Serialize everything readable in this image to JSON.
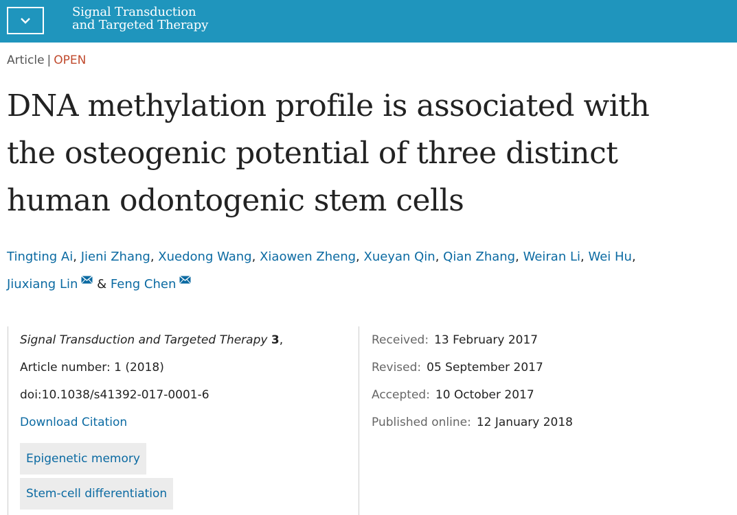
{
  "header": {
    "menu_icon": "chevron-down-icon",
    "journal_line1": "Signal Transduction",
    "journal_line2": "and Targeted Therapy",
    "bar_color": "#1f95bd"
  },
  "article": {
    "type": "Article",
    "separator": "|",
    "access": "OPEN",
    "title_lines": [
      "DNA methylation profile is associated with",
      "the osteogenic potential of three distinct",
      "human odontogenic stem cells"
    ]
  },
  "authors": [
    {
      "name": "Tingting Ai",
      "suffix": ","
    },
    {
      "name": "Jieni Zhang",
      "suffix": ","
    },
    {
      "name": "Xuedong Wang",
      "suffix": ","
    },
    {
      "name": "Xiaowen Zheng",
      "suffix": ","
    },
    {
      "name": "Xueyan Qin",
      "suffix": ","
    },
    {
      "name": "Qian Zhang",
      "suffix": ","
    },
    {
      "name": "Weiran Li",
      "suffix": ","
    },
    {
      "name": "Wei Hu",
      "suffix": ","
    },
    {
      "name": "Jiuxiang Lin",
      "suffix": ""
    },
    {
      "name": "Feng Chen",
      "suffix": ""
    }
  ],
  "authors_joiner": "&",
  "citation": {
    "journal": "Signal Transduction and Targeted Therapy",
    "volume": "3",
    "volume_suffix": ",",
    "article_number": "Article number: 1 (2018)",
    "doi": "doi:10.1038/s41392-017-0001-6",
    "download_label": "Download Citation"
  },
  "subjects": [
    "Epigenetic memory",
    "Stem-cell differentiation"
  ],
  "dates": [
    {
      "label": "Received:",
      "value": "13 February 2017"
    },
    {
      "label": "Revised:",
      "value": "05 September 2017"
    },
    {
      "label": "Accepted:",
      "value": "10 October 2017"
    },
    {
      "label": "Published online:",
      "value": "12 January 2018"
    }
  ],
  "colors": {
    "link": "#0b6aa2",
    "open": "#c04a2d",
    "tag_bg": "#ececec"
  }
}
